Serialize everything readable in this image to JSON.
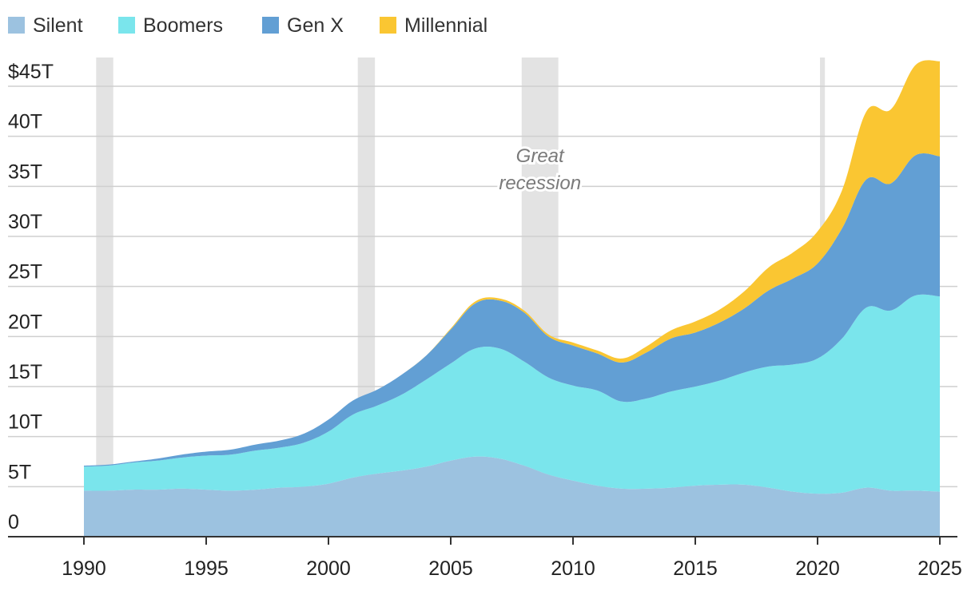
{
  "chart_data": {
    "type": "area",
    "stacked": true,
    "x": [
      1990,
      1991,
      1992,
      1993,
      1994,
      1995,
      1996,
      1997,
      1998,
      1999,
      2000,
      2001,
      2002,
      2003,
      2004,
      2005,
      2006,
      2007,
      2008,
      2009,
      2010,
      2011,
      2012,
      2013,
      2014,
      2015,
      2016,
      2017,
      2018,
      2019,
      2020,
      2021,
      2022,
      2023,
      2024,
      2025
    ],
    "series": [
      {
        "name": "Silent",
        "color": "#9cc2e0",
        "values": [
          4.6,
          4.6,
          4.7,
          4.7,
          4.8,
          4.7,
          4.6,
          4.7,
          4.9,
          5.0,
          5.3,
          5.9,
          6.3,
          6.6,
          7.0,
          7.6,
          8.0,
          7.8,
          7.1,
          6.2,
          5.6,
          5.1,
          4.8,
          4.8,
          4.9,
          5.1,
          5.2,
          5.2,
          4.9,
          4.5,
          4.3,
          4.4,
          4.9,
          4.6,
          4.6,
          4.5
        ]
      },
      {
        "name": "Boomers",
        "color": "#7ae5ec",
        "values": [
          2.4,
          2.5,
          2.7,
          2.9,
          3.1,
          3.4,
          3.6,
          3.9,
          4.0,
          4.4,
          5.2,
          6.3,
          6.8,
          7.6,
          8.7,
          9.7,
          10.8,
          11.0,
          10.4,
          9.7,
          9.5,
          9.5,
          8.7,
          9.0,
          9.6,
          9.9,
          10.4,
          11.2,
          12.1,
          12.7,
          13.5,
          15.4,
          18.0,
          18.0,
          19.5,
          19.5
        ]
      },
      {
        "name": "Gen X",
        "color": "#629fd4",
        "values": [
          0.1,
          0.1,
          0.1,
          0.2,
          0.3,
          0.4,
          0.5,
          0.6,
          0.7,
          0.9,
          1.2,
          1.4,
          1.6,
          2.0,
          2.4,
          3.4,
          4.5,
          4.8,
          4.9,
          4.1,
          4.0,
          3.7,
          3.9,
          4.6,
          5.3,
          5.4,
          5.8,
          6.4,
          7.6,
          8.6,
          9.5,
          11.0,
          12.8,
          12.7,
          14.0,
          14.0
        ]
      },
      {
        "name": "Millennial",
        "color": "#fac632",
        "values": [
          0,
          0,
          0,
          0,
          0,
          0,
          0,
          0,
          0,
          0,
          0,
          0,
          0,
          0,
          0,
          0.1,
          0.2,
          0.2,
          0.2,
          0.2,
          0.3,
          0.3,
          0.4,
          0.6,
          0.8,
          1.1,
          1.3,
          1.7,
          2.3,
          2.6,
          3.2,
          3.8,
          6.8,
          7.4,
          9.0,
          9.5
        ]
      }
    ],
    "ylim": [
      0,
      48
    ],
    "y_ticks": [
      0,
      5,
      10,
      15,
      20,
      25,
      30,
      35,
      40,
      45
    ],
    "y_tick_labels": [
      "0",
      "5T",
      "10T",
      "15T",
      "20T",
      "25T",
      "30T",
      "35T",
      "40T",
      "$45T"
    ],
    "x_ticks": [
      1990,
      1995,
      2000,
      2005,
      2010,
      2015,
      2020,
      2025
    ],
    "x_tick_labels": [
      "1990",
      "1995",
      "2000",
      "2005",
      "2010",
      "2015",
      "2020",
      "2025"
    ],
    "recessions": [
      [
        1990.5,
        1991.2
      ],
      [
        2001.2,
        2001.9
      ],
      [
        2007.9,
        2009.4
      ],
      [
        2020.1,
        2020.3
      ]
    ],
    "annotation": {
      "lines": [
        "Great",
        "recession"
      ],
      "x": 2008.65
    },
    "grid": true,
    "legend_position": "top-left"
  }
}
